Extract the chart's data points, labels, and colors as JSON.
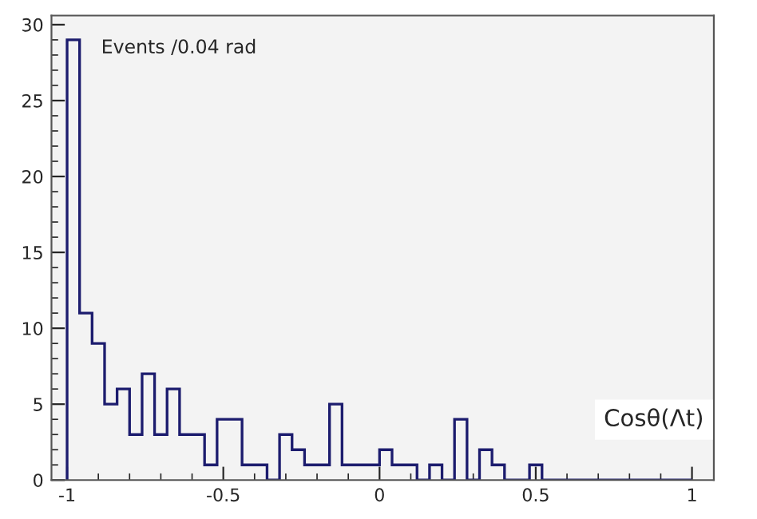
{
  "chart_data": {
    "type": "histogram",
    "bins": [
      -1.0,
      -0.96,
      -0.92,
      -0.88,
      -0.84,
      -0.8,
      -0.76,
      -0.72,
      -0.68,
      -0.64,
      -0.6,
      -0.56,
      -0.52,
      -0.48,
      -0.44,
      -0.4,
      -0.36,
      -0.32,
      -0.28,
      -0.24,
      -0.2,
      -0.16,
      -0.12,
      -0.08,
      -0.04,
      0.0,
      0.04,
      0.08,
      0.12,
      0.16,
      0.2,
      0.24,
      0.28,
      0.32,
      0.36,
      0.4,
      0.44,
      0.48,
      0.52,
      0.56,
      0.6,
      0.64,
      0.68,
      0.72,
      0.76,
      0.8,
      0.84,
      0.88,
      0.92,
      0.96,
      1.0
    ],
    "values": [
      29,
      11,
      9,
      5,
      6,
      3,
      7,
      3,
      6,
      3,
      3,
      1,
      4,
      4,
      1,
      1,
      0,
      3,
      2,
      1,
      1,
      5,
      1,
      1,
      1,
      2,
      1,
      1,
      0,
      1,
      0,
      4,
      0,
      2,
      1,
      0,
      0,
      1,
      0,
      0,
      0,
      0,
      0,
      0,
      0,
      0,
      0,
      0,
      0,
      0
    ],
    "color": "#1c1c6e",
    "xlim": [
      -1.05,
      1.07
    ],
    "ylim": [
      0,
      30.6
    ],
    "xticks": [
      -1,
      -0.5,
      0,
      0.5,
      1
    ],
    "yticks": [
      0,
      5,
      10,
      15,
      20,
      25,
      30
    ],
    "grid": false,
    "annotations": [
      "Events /0.04 rad",
      "Cosθ(Λt)"
    ]
  }
}
